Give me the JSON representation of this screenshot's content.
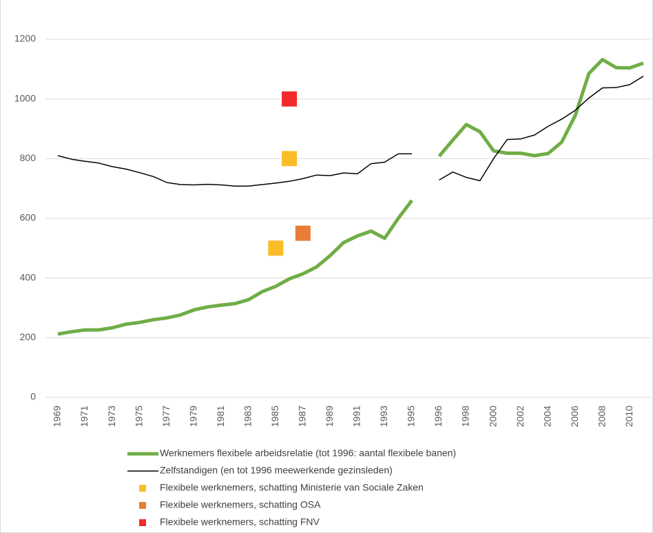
{
  "chart_data": {
    "type": "line",
    "categories": [
      1969,
      null,
      1971,
      null,
      1973,
      null,
      1975,
      null,
      1977,
      null,
      1979,
      null,
      1981,
      null,
      1983,
      null,
      1985,
      null,
      1987,
      null,
      1989,
      null,
      1991,
      null,
      1993,
      null,
      1995,
      null,
      1996,
      null,
      1998,
      null,
      2000,
      null,
      2002,
      null,
      2004,
      null,
      2006,
      null,
      2008,
      null,
      2010,
      null
    ],
    "series": [
      {
        "name": "Werknemers flexibele arbeidsrelatie (tot 1996: aantal flexibele banen)",
        "type": "line",
        "color": "#70ad47",
        "width": 5,
        "values": [
          212,
          220,
          226,
          226,
          233,
          245,
          251,
          260,
          266,
          276,
          293,
          303,
          309,
          314,
          327,
          354,
          372,
          397,
          414,
          437,
          475,
          519,
          541,
          557,
          533,
          600,
          660,
          null,
          808,
          862,
          914,
          890,
          826,
          818,
          818,
          810,
          817,
          855,
          945,
          1085,
          1132,
          1105,
          1104,
          1120
        ]
      },
      {
        "name": "Zelfstandigen (en tot 1996 meewerkende gezinsleden)",
        "type": "line",
        "color": "#000000",
        "width": 1.5,
        "values": [
          810,
          798,
          791,
          785,
          773,
          765,
          753,
          740,
          720,
          713,
          712,
          714,
          712,
          708,
          708,
          713,
          718,
          724,
          733,
          745,
          743,
          752,
          749,
          783,
          788,
          816,
          816,
          null,
          728,
          755,
          737,
          726,
          800,
          864,
          866,
          879,
          908,
          932,
          962,
          1003,
          1037,
          1038,
          1048,
          1076
        ]
      },
      {
        "name": "Flexibele werknemers, schatting Ministerie van Sociale Zaken",
        "type": "scatter",
        "color": "#fbbc2a",
        "values": [
          null,
          null,
          null,
          null,
          null,
          null,
          null,
          null,
          null,
          null,
          null,
          null,
          null,
          null,
          null,
          null,
          500,
          800,
          null,
          null,
          null,
          null,
          null,
          null,
          null,
          null,
          null,
          null,
          null,
          null,
          null,
          null,
          null,
          null,
          null,
          null,
          null,
          null,
          null,
          null,
          null,
          null,
          null,
          null
        ]
      },
      {
        "name": "Flexibele werknemers, schatting OSA",
        "type": "scatter",
        "color": "#e97c36",
        "values": [
          null,
          null,
          null,
          null,
          null,
          null,
          null,
          null,
          null,
          null,
          null,
          null,
          null,
          null,
          null,
          null,
          null,
          null,
          550,
          null,
          null,
          null,
          null,
          null,
          null,
          null,
          null,
          null,
          null,
          null,
          null,
          null,
          null,
          null,
          null,
          null,
          null,
          null,
          null,
          null,
          null,
          null,
          null,
          null
        ]
      },
      {
        "name": "Flexibele werknemers, schatting FNV",
        "type": "scatter",
        "color": "#f22a2a",
        "values": [
          null,
          null,
          null,
          null,
          null,
          null,
          null,
          null,
          null,
          null,
          null,
          null,
          null,
          null,
          null,
          null,
          null,
          1000,
          null,
          null,
          null,
          null,
          null,
          null,
          null,
          null,
          null,
          null,
          null,
          null,
          null,
          null,
          null,
          null,
          null,
          null,
          null,
          null,
          null,
          null,
          null,
          null,
          null,
          null
        ]
      }
    ],
    "ylim": [
      0,
      1200
    ],
    "yticks": [
      0,
      200,
      400,
      600,
      800,
      1000,
      1200
    ],
    "grid": true,
    "legend": "bottom"
  }
}
